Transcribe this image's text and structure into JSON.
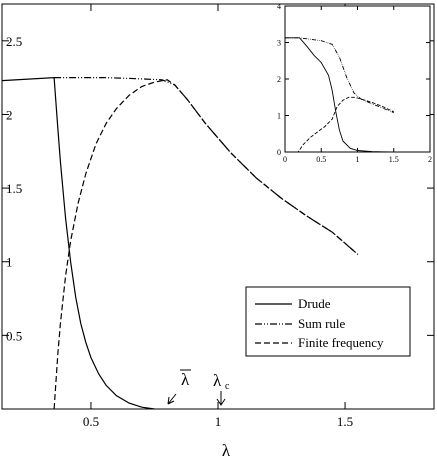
{
  "chart_data": {
    "type": "line",
    "title": "",
    "xlabel": "λ",
    "ylabel": "",
    "xlim": [
      0.15,
      1.85
    ],
    "ylim": [
      0,
      2.75
    ],
    "grid": false,
    "legend_position": "lower-right",
    "x_ticks": [
      0.5,
      1,
      1.5
    ],
    "x_tick_labels": [
      "0.5",
      "1",
      "1.5"
    ],
    "y_ticks": [
      0.5,
      1,
      1.5,
      2,
      2.5
    ],
    "y_tick_labels": [
      "0.5",
      "1",
      "1.5",
      "2",
      "2.5"
    ],
    "series": [
      {
        "name": "Drude",
        "style": "solid",
        "x": [
          0.15,
          0.355,
          0.37,
          0.38,
          0.4,
          0.42,
          0.44,
          0.46,
          0.48,
          0.5,
          0.53,
          0.56,
          0.6,
          0.65,
          0.7,
          0.75
        ],
        "y": [
          2.23,
          2.25,
          1.9,
          1.68,
          1.3,
          1.0,
          0.76,
          0.58,
          0.45,
          0.35,
          0.24,
          0.16,
          0.09,
          0.04,
          0.012,
          0.0
        ]
      },
      {
        "name": "Sum rule",
        "style": "dash-dot-dot",
        "x": [
          0.355,
          0.45,
          0.55,
          0.65,
          0.72,
          0.78,
          0.83,
          0.88,
          0.95,
          1.05,
          1.15,
          1.25,
          1.35,
          1.45,
          1.55
        ],
        "y": [
          2.25,
          2.25,
          2.25,
          2.245,
          2.24,
          2.235,
          2.2,
          2.1,
          1.94,
          1.74,
          1.57,
          1.43,
          1.31,
          1.2,
          1.05
        ]
      },
      {
        "name": "Finite frequency",
        "style": "dashed",
        "x": [
          0.355,
          0.37,
          0.38,
          0.4,
          0.42,
          0.45,
          0.48,
          0.52,
          0.56,
          0.6,
          0.65,
          0.7,
          0.75,
          0.8,
          0.83,
          0.88,
          0.95,
          1.05,
          1.15,
          1.25,
          1.35,
          1.45,
          1.55
        ],
        "y": [
          0.0,
          0.38,
          0.58,
          0.9,
          1.14,
          1.4,
          1.6,
          1.8,
          1.94,
          2.04,
          2.13,
          2.19,
          2.22,
          2.235,
          2.2,
          2.1,
          1.94,
          1.74,
          1.57,
          1.43,
          1.31,
          1.2,
          1.05
        ]
      }
    ],
    "inset": {
      "type": "line",
      "xlim": [
        0,
        2
      ],
      "ylim": [
        0,
        4
      ],
      "x_ticks": [
        0,
        0.5,
        1,
        1.5,
        2
      ],
      "x_tick_labels": [
        "0",
        "0.5",
        "1",
        "1.5",
        "2"
      ],
      "y_ticks": [
        0,
        1,
        2,
        3,
        4
      ],
      "y_tick_labels": [
        "0",
        "1",
        "2",
        "3",
        "4"
      ],
      "series": [
        {
          "name": "Drude",
          "style": "solid",
          "x": [
            0.0,
            0.15,
            0.2,
            0.3,
            0.4,
            0.5,
            0.6,
            0.65,
            0.7,
            0.75,
            0.8,
            0.9,
            1.0,
            1.2,
            1.5
          ],
          "y": [
            3.13,
            3.13,
            3.13,
            2.9,
            2.65,
            2.45,
            2.1,
            1.7,
            1.1,
            0.6,
            0.3,
            0.1,
            0.04,
            0.01,
            0.0
          ]
        },
        {
          "name": "Sum rule",
          "style": "dash-dot-dot",
          "x": [
            0.0,
            0.2,
            0.3,
            0.5,
            0.65,
            0.75,
            0.85,
            0.95,
            1.05,
            1.2,
            1.35,
            1.5
          ],
          "y": [
            3.13,
            3.13,
            3.1,
            3.05,
            2.95,
            2.6,
            2.05,
            1.62,
            1.45,
            1.32,
            1.2,
            1.08
          ]
        },
        {
          "name": "Finite frequency",
          "style": "dashed",
          "x": [
            0.0,
            0.18,
            0.25,
            0.35,
            0.45,
            0.55,
            0.65,
            0.72,
            0.8,
            0.88,
            0.95,
            1.0,
            1.1,
            1.2,
            1.35,
            1.5
          ],
          "y": [
            0.0,
            0.0,
            0.2,
            0.4,
            0.55,
            0.7,
            0.9,
            1.25,
            1.42,
            1.5,
            1.5,
            1.48,
            1.42,
            1.36,
            1.24,
            1.1
          ]
        }
      ]
    },
    "annotations": [
      {
        "text": "λ",
        "overline": true,
        "subscript": "",
        "x": 0.73,
        "arrow": "down-left"
      },
      {
        "text": "λ",
        "overline": false,
        "subscript": "c",
        "x": 0.95,
        "arrow": "down"
      }
    ]
  }
}
